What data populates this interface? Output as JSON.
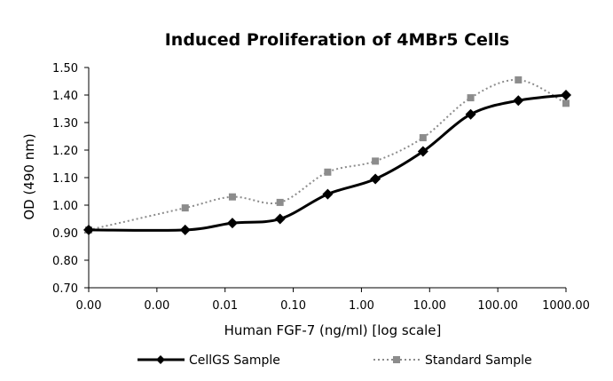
{
  "chart_data": {
    "type": "line",
    "title": "Induced Proliferation of 4MBr5 Cells",
    "xlabel": "Human FGF-7 (ng/ml) [log scale]",
    "ylabel": "OD (490 nm)",
    "x_scale": "log",
    "x_tick_labels": [
      "0.00",
      "0.00",
      "0.01",
      "0.10",
      "1.00",
      "10.00",
      "100.00",
      "1000.00"
    ],
    "x_tick_values": [
      0.0001,
      0.001,
      0.01,
      0.1,
      1,
      10,
      100,
      1000
    ],
    "y_tick_labels": [
      "0.70",
      "0.80",
      "0.90",
      "1.00",
      "1.10",
      "1.20",
      "1.30",
      "1.40",
      "1.50"
    ],
    "ylim": [
      0.7,
      1.5
    ],
    "grid": false,
    "legend_position": "bottom",
    "series": [
      {
        "name": "CellGS Sample",
        "color": "#000000",
        "marker": "diamond",
        "line_style": "solid",
        "x": [
          0.0001,
          0.0026,
          0.0128,
          0.064,
          0.32,
          1.6,
          8,
          40,
          200,
          1000
        ],
        "y": [
          0.91,
          0.91,
          0.935,
          0.95,
          1.04,
          1.095,
          1.195,
          1.33,
          1.38,
          1.4
        ]
      },
      {
        "name": "Standard Sample",
        "color": "#8c8c8c",
        "marker": "square",
        "line_style": "dotted",
        "x": [
          0.0001,
          0.0026,
          0.0128,
          0.064,
          0.32,
          1.6,
          8,
          40,
          200,
          1000
        ],
        "y": [
          0.91,
          0.99,
          1.03,
          1.01,
          1.12,
          1.16,
          1.245,
          1.39,
          1.455,
          1.37
        ]
      }
    ]
  }
}
